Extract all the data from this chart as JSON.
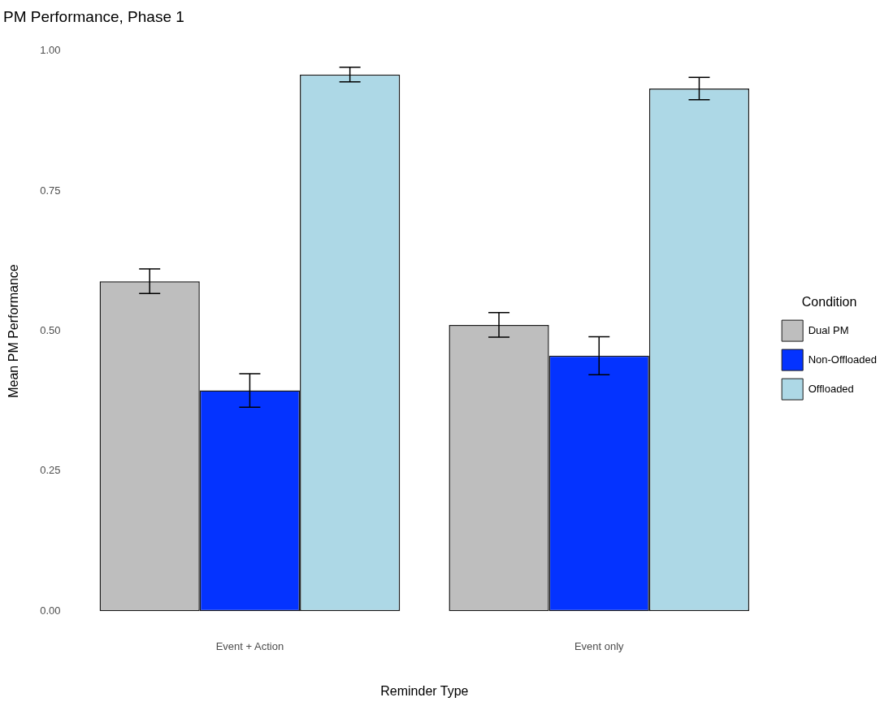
{
  "chart_data": {
    "type": "bar",
    "title": "PM Performance, Phase 1",
    "xlabel": "Reminder Type",
    "ylabel": "Mean PM Performance",
    "legend_title": "Condition",
    "categories": [
      "Event + Action",
      "Event only"
    ],
    "series": [
      {
        "name": "Dual PM",
        "color": "#bebebe",
        "values": [
          0.589,
          0.511
        ],
        "errors": [
          0.022,
          0.022
        ]
      },
      {
        "name": "Non-Offloaded",
        "color": "#0433ff",
        "values": [
          0.394,
          0.456
        ],
        "errors": [
          0.03,
          0.034
        ]
      },
      {
        "name": "Offloaded",
        "color": "#add8e6",
        "values": [
          0.958,
          0.933
        ],
        "errors": [
          0.013,
          0.02
        ]
      }
    ],
    "ylim": [
      0,
      1
    ],
    "yticks": [
      {
        "value": 0,
        "label": "0.00"
      },
      {
        "value": 0.25,
        "label": "0.25"
      },
      {
        "value": 0.5,
        "label": "0.50"
      },
      {
        "value": 0.75,
        "label": "0.75"
      },
      {
        "value": 1,
        "label": "1.00"
      }
    ],
    "grid": false,
    "legend": "right"
  }
}
